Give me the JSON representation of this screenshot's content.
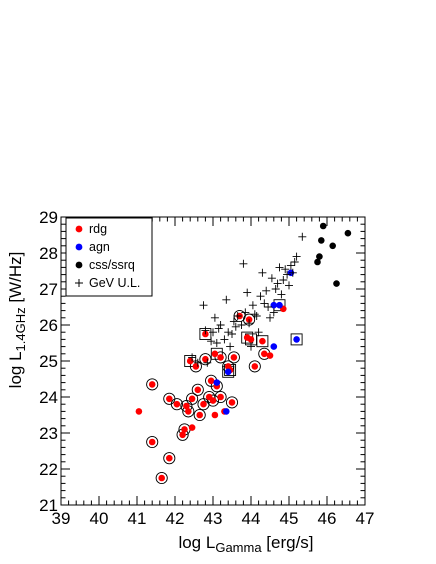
{
  "chart_data": {
    "type": "scatter",
    "xlabel": {
      "main": "log L",
      "sub": "Gamma",
      "unit": " [erg/s]"
    },
    "ylabel": {
      "main": "log L",
      "sub": "1.4GHz",
      "unit": " [W/Hz]"
    },
    "xlim": [
      39,
      47
    ],
    "ylim": [
      21,
      29
    ],
    "x_ticks": [
      39,
      40,
      41,
      42,
      43,
      44,
      45,
      46,
      47
    ],
    "y_ticks": [
      21,
      22,
      23,
      24,
      25,
      26,
      27,
      28,
      29
    ],
    "grid": false,
    "legend_position": "top-left",
    "legend": [
      {
        "label": "rdg",
        "marker": "dot",
        "color": "#ff0000"
      },
      {
        "label": "agn",
        "marker": "dot",
        "color": "#0000ff"
      },
      {
        "label": "css/ssrq",
        "marker": "dot",
        "color": "#000000"
      },
      {
        "label": "GeV U.L.",
        "marker": "cross",
        "color": "#000000"
      }
    ],
    "colors": {
      "rdg": "#ff0000",
      "agn": "#0000ff",
      "css": "#000000",
      "gev": "#000000"
    },
    "series": [
      {
        "name": "rdg",
        "color": "#ff0000",
        "points": [
          [
            41.05,
            23.6
          ],
          [
            41.4,
            24.35
          ],
          [
            41.4,
            22.75
          ],
          [
            41.65,
            21.75
          ],
          [
            41.85,
            22.3
          ],
          [
            41.85,
            23.95
          ],
          [
            42.05,
            23.8
          ],
          [
            42.2,
            22.95
          ],
          [
            42.25,
            23.1
          ],
          [
            42.3,
            23.75
          ],
          [
            42.35,
            23.6
          ],
          [
            42.4,
            25.0
          ],
          [
            42.45,
            23.95
          ],
          [
            42.45,
            23.15
          ],
          [
            42.55,
            24.85
          ],
          [
            42.6,
            24.2
          ],
          [
            42.65,
            23.5
          ],
          [
            42.75,
            23.8
          ],
          [
            42.8,
            25.75
          ],
          [
            42.8,
            25.05
          ],
          [
            42.9,
            24.0
          ],
          [
            42.95,
            24.45
          ],
          [
            43.0,
            23.9
          ],
          [
            43.05,
            25.2
          ],
          [
            43.05,
            23.5
          ],
          [
            43.1,
            24.3
          ],
          [
            43.2,
            25.1
          ],
          [
            43.2,
            24.0
          ],
          [
            43.3,
            23.6
          ],
          [
            43.4,
            24.85
          ],
          [
            43.45,
            24.75
          ],
          [
            43.5,
            23.85
          ],
          [
            43.55,
            25.1
          ],
          [
            43.7,
            26.25
          ],
          [
            43.9,
            25.65
          ],
          [
            43.95,
            26.15
          ],
          [
            44.0,
            25.6
          ],
          [
            44.1,
            24.85
          ],
          [
            44.3,
            25.55
          ],
          [
            44.35,
            25.2
          ],
          [
            44.5,
            25.15
          ],
          [
            44.85,
            26.45
          ]
        ]
      },
      {
        "name": "agn",
        "color": "#0000ff",
        "points": [
          [
            43.1,
            24.4
          ],
          [
            43.35,
            23.6
          ],
          [
            43.4,
            24.7
          ],
          [
            44.6,
            25.4
          ],
          [
            44.6,
            26.55
          ],
          [
            44.75,
            26.55
          ],
          [
            45.05,
            27.45
          ],
          [
            45.2,
            25.6
          ]
        ]
      },
      {
        "name": "css/ssrq",
        "color": "#000000",
        "points": [
          [
            45.75,
            27.75
          ],
          [
            45.8,
            27.9
          ],
          [
            45.85,
            28.35
          ],
          [
            45.9,
            28.75
          ],
          [
            46.15,
            28.2
          ],
          [
            46.25,
            27.15
          ],
          [
            46.55,
            28.55
          ]
        ]
      },
      {
        "name": "GeV U.L.",
        "color": "#000000",
        "points": [
          [
            42.45,
            25.1
          ],
          [
            42.6,
            24.95
          ],
          [
            42.75,
            26.55
          ],
          [
            42.8,
            25.85
          ],
          [
            42.85,
            24.95
          ],
          [
            42.95,
            25.55
          ],
          [
            43.0,
            25.8
          ],
          [
            43.05,
            26.2
          ],
          [
            43.1,
            25.5
          ],
          [
            43.15,
            25.9
          ],
          [
            43.2,
            26.0
          ],
          [
            43.3,
            25.6
          ],
          [
            43.35,
            26.7
          ],
          [
            43.4,
            25.8
          ],
          [
            43.45,
            25.4
          ],
          [
            43.5,
            25.75
          ],
          [
            43.55,
            26.1
          ],
          [
            43.6,
            25.95
          ],
          [
            43.65,
            26.25
          ],
          [
            43.75,
            26.0
          ],
          [
            43.85,
            26.35
          ],
          [
            43.9,
            26.9
          ],
          [
            43.95,
            26.05
          ],
          [
            44.0,
            25.4
          ],
          [
            44.05,
            26.55
          ],
          [
            44.1,
            26.3
          ],
          [
            44.15,
            26.25
          ],
          [
            44.2,
            25.8
          ],
          [
            44.25,
            26.8
          ],
          [
            44.3,
            27.45
          ],
          [
            44.35,
            26.6
          ],
          [
            44.4,
            26.95
          ],
          [
            44.45,
            26.5
          ],
          [
            44.5,
            26.2
          ],
          [
            44.55,
            27.3
          ],
          [
            44.6,
            26.35
          ],
          [
            44.65,
            27.0
          ],
          [
            44.7,
            27.15
          ],
          [
            44.75,
            27.6
          ],
          [
            44.8,
            26.85
          ],
          [
            44.85,
            27.25
          ],
          [
            44.9,
            27.55
          ],
          [
            44.95,
            27.4
          ],
          [
            45.0,
            27.1
          ],
          [
            45.05,
            27.65
          ],
          [
            45.1,
            27.45
          ],
          [
            45.15,
            27.75
          ],
          [
            45.2,
            27.9
          ],
          [
            45.35,
            28.45
          ],
          [
            43.8,
            27.7
          ]
        ]
      }
    ],
    "boxed_points": [
      [
        42.4,
        25.0
      ],
      [
        42.8,
        25.75
      ],
      [
        43.1,
        25.2
      ],
      [
        43.4,
        24.7
      ],
      [
        43.45,
        24.75
      ],
      [
        43.9,
        25.65
      ],
      [
        44.0,
        25.6
      ],
      [
        44.3,
        25.55
      ],
      [
        44.75,
        26.55
      ],
      [
        45.2,
        25.6
      ]
    ],
    "circled_points": [
      [
        41.4,
        24.35
      ],
      [
        41.4,
        22.75
      ],
      [
        41.65,
        21.75
      ],
      [
        41.85,
        22.3
      ],
      [
        41.85,
        23.95
      ],
      [
        42.05,
        23.8
      ],
      [
        42.2,
        22.95
      ],
      [
        42.25,
        23.1
      ],
      [
        42.3,
        23.75
      ],
      [
        42.35,
        23.6
      ],
      [
        42.45,
        23.95
      ],
      [
        42.55,
        24.85
      ],
      [
        42.6,
        24.2
      ],
      [
        42.65,
        23.5
      ],
      [
        42.75,
        23.8
      ],
      [
        42.8,
        25.05
      ],
      [
        42.9,
        24.0
      ],
      [
        42.95,
        24.45
      ],
      [
        43.0,
        23.9
      ],
      [
        43.1,
        24.3
      ],
      [
        43.2,
        25.1
      ],
      [
        43.2,
        24.0
      ],
      [
        43.5,
        23.85
      ],
      [
        43.55,
        25.1
      ],
      [
        43.7,
        26.25
      ],
      [
        43.95,
        26.15
      ],
      [
        44.1,
        24.85
      ],
      [
        44.35,
        25.2
      ],
      [
        43.4,
        24.85
      ]
    ]
  }
}
